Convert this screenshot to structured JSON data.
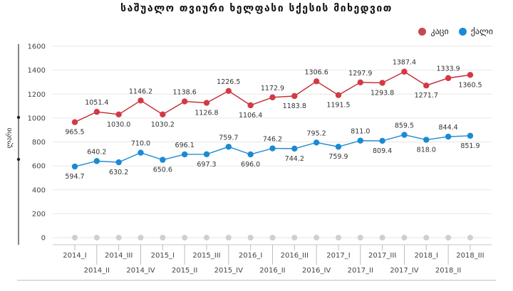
{
  "chart_data": {
    "type": "line",
    "title": "საშუალო თვიური ხელფასი სქესის მიხედვით",
    "ylabel": "ლარი",
    "xlabel": "",
    "ylim": [
      0,
      1600
    ],
    "yticks": [
      0,
      200,
      400,
      600,
      800,
      1000,
      1200,
      1400,
      1600
    ],
    "grid": true,
    "legend_position": "top-right",
    "categories": [
      "2014_I",
      "2014_II",
      "2014_III",
      "2014_IV",
      "2015_I",
      "2015_II",
      "2015_III",
      "2015_IV",
      "2016_I",
      "2016_II",
      "2016_III",
      "2016_IV",
      "2017_I",
      "2017_II",
      "2017_III",
      "2017_IV",
      "2018_I",
      "2018_II",
      "2018_III"
    ],
    "series": [
      {
        "name": "კაცი",
        "color": "#c3262d",
        "values": [
          965.5,
          1051.4,
          1030.0,
          1146.2,
          1030.2,
          1138.6,
          1126.8,
          1226.5,
          1106.4,
          1172.9,
          1183.8,
          1306.6,
          1191.5,
          1297.9,
          1293.8,
          1387.4,
          1271.7,
          1333.9,
          1360.5
        ]
      },
      {
        "name": "ქალი",
        "color": "#1b8ad3",
        "values": [
          594.7,
          640.2,
          630.2,
          710.0,
          650.6,
          696.1,
          697.3,
          759.7,
          696.0,
          746.2,
          744.2,
          795.2,
          759.9,
          811.0,
          809.4,
          859.5,
          818.0,
          844.4,
          851.9
        ]
      }
    ]
  }
}
